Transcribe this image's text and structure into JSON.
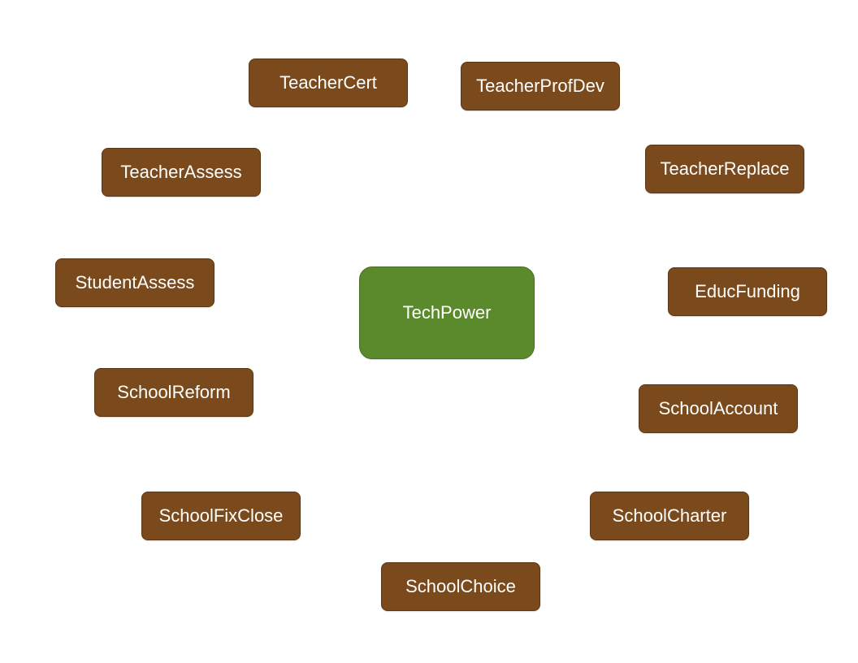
{
  "diagram": {
    "central_node": {
      "label": "TechPower",
      "color": "#5b8a2c"
    },
    "peripheral_color": "#7b4a1c",
    "peripheral_nodes": [
      {
        "id": "teachercert",
        "label": "TeacherCert"
      },
      {
        "id": "teacherprofdev",
        "label": "TeacherProfDev"
      },
      {
        "id": "teacherassess",
        "label": "TeacherAssess"
      },
      {
        "id": "teacherreplace",
        "label": "TeacherReplace"
      },
      {
        "id": "studentassess",
        "label": "StudentAssess"
      },
      {
        "id": "educfunding",
        "label": "EducFunding"
      },
      {
        "id": "schoolreform",
        "label": "SchoolReform"
      },
      {
        "id": "schoolaccount",
        "label": "SchoolAccount"
      },
      {
        "id": "schoolfixclose",
        "label": "SchoolFixClose"
      },
      {
        "id": "schoolcharter",
        "label": "SchoolCharter"
      },
      {
        "id": "schoolchoice",
        "label": "SchoolChoice"
      }
    ]
  }
}
